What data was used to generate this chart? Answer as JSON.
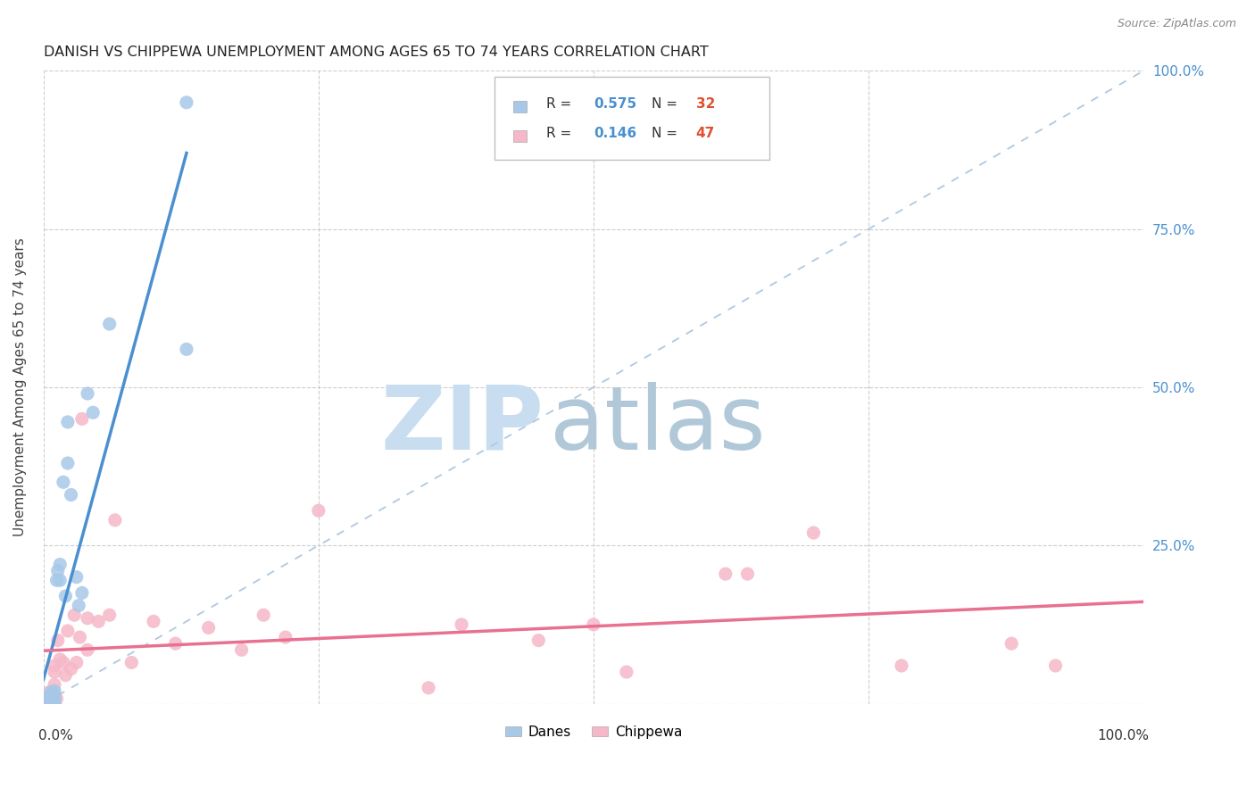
{
  "title": "DANISH VS CHIPPEWA UNEMPLOYMENT AMONG AGES 65 TO 74 YEARS CORRELATION CHART",
  "source": "Source: ZipAtlas.com",
  "ylabel": "Unemployment Among Ages 65 to 74 years",
  "xlim": [
    0,
    1
  ],
  "ylim": [
    0,
    1
  ],
  "gridline_color": "#c8c8c8",
  "background_color": "#ffffff",
  "danes_color": "#a8c8e8",
  "chippewa_color": "#f5b8c8",
  "danes_line_color": "#4a90d0",
  "chippewa_line_color": "#e87090",
  "diagonal_color": "#b0c8e0",
  "watermark_zip_color": "#c8ddf0",
  "watermark_atlas_color": "#b0c8d8",
  "legend_R_color": "#4a90d0",
  "legend_N_color": "#e05030",
  "danes_scatter_x": [
    0.005,
    0.005,
    0.005,
    0.005,
    0.005,
    0.005,
    0.005,
    0.007,
    0.008,
    0.01,
    0.01,
    0.01,
    0.01,
    0.01,
    0.01,
    0.012,
    0.013,
    0.015,
    0.015,
    0.018,
    0.02,
    0.022,
    0.022,
    0.025,
    0.03,
    0.032,
    0.035,
    0.04,
    0.045,
    0.06,
    0.13,
    0.13
  ],
  "danes_scatter_y": [
    0.0,
    0.002,
    0.003,
    0.005,
    0.007,
    0.01,
    0.012,
    0.018,
    0.004,
    0.0,
    0.002,
    0.004,
    0.008,
    0.015,
    0.02,
    0.195,
    0.21,
    0.195,
    0.22,
    0.35,
    0.17,
    0.38,
    0.445,
    0.33,
    0.2,
    0.155,
    0.175,
    0.49,
    0.46,
    0.6,
    0.95,
    0.56
  ],
  "chippewa_scatter_x": [
    0.005,
    0.005,
    0.005,
    0.005,
    0.005,
    0.005,
    0.005,
    0.007,
    0.008,
    0.01,
    0.01,
    0.01,
    0.012,
    0.013,
    0.015,
    0.018,
    0.02,
    0.022,
    0.025,
    0.028,
    0.03,
    0.033,
    0.035,
    0.04,
    0.04,
    0.05,
    0.06,
    0.065,
    0.08,
    0.1,
    0.12,
    0.15,
    0.18,
    0.2,
    0.22,
    0.25,
    0.35,
    0.38,
    0.45,
    0.5,
    0.53,
    0.62,
    0.64,
    0.7,
    0.78,
    0.88,
    0.92
  ],
  "chippewa_scatter_y": [
    0.003,
    0.005,
    0.008,
    0.01,
    0.012,
    0.015,
    0.018,
    0.004,
    0.02,
    0.03,
    0.05,
    0.06,
    0.008,
    0.1,
    0.07,
    0.065,
    0.045,
    0.115,
    0.055,
    0.14,
    0.065,
    0.105,
    0.45,
    0.085,
    0.135,
    0.13,
    0.14,
    0.29,
    0.065,
    0.13,
    0.095,
    0.12,
    0.085,
    0.14,
    0.105,
    0.305,
    0.025,
    0.125,
    0.1,
    0.125,
    0.05,
    0.205,
    0.205,
    0.27,
    0.06,
    0.095,
    0.06
  ]
}
